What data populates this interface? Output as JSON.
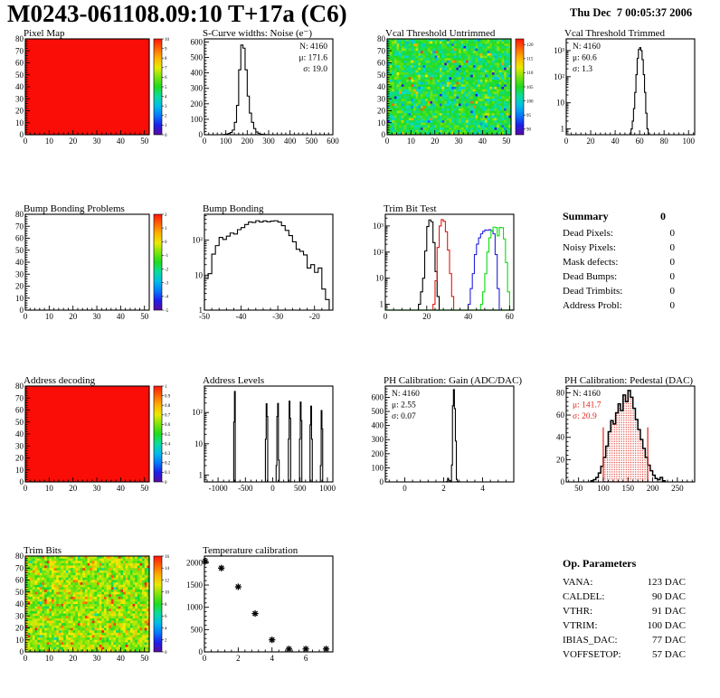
{
  "header": {
    "title": "M0243-061108.09:10 T+17a (C6)",
    "date": "Thu Dec  7 00:05:37 2006"
  },
  "summary": {
    "heading": "Summary",
    "value": "0",
    "rows": [
      {
        "label": "Dead Pixels:",
        "value": "0"
      },
      {
        "label": "Noisy Pixels:",
        "value": "0"
      },
      {
        "label": "Mask defects:",
        "value": "0"
      },
      {
        "label": "Dead Bumps:",
        "value": "0"
      },
      {
        "label": "Dead Trimbits:",
        "value": "0"
      },
      {
        "label": "Address Probl:",
        "value": "0"
      }
    ]
  },
  "op_parameters": {
    "heading": "Op. Parameters",
    "rows": [
      {
        "label": "VANA:",
        "value": "123 DAC"
      },
      {
        "label": "CALDEL:",
        "value": "90 DAC"
      },
      {
        "label": "VTHR:",
        "value": "91 DAC"
      },
      {
        "label": "VTRIM:",
        "value": "100 DAC"
      },
      {
        "label": "IBIAS_DAC:",
        "value": "77 DAC"
      },
      {
        "label": "VOFFSETOP:",
        "value": "57 DAC"
      }
    ]
  },
  "chart_data": [
    {
      "name": "pixel-map",
      "title": "Pixel Map",
      "type": "heatmap",
      "grid": {
        "row": 0,
        "col": 0
      },
      "xlim": [
        0,
        52
      ],
      "ylim": [
        0,
        80
      ],
      "xticks": [
        0,
        10,
        20,
        30,
        40,
        50
      ],
      "yticks": [
        0,
        10,
        20,
        30,
        40,
        50,
        60,
        70,
        80
      ],
      "heat": {
        "mode": "solid",
        "color": "#fa0d06"
      },
      "colorbar": {
        "zmin": 0,
        "zmax": 10,
        "labels": [
          {
            "v": 10,
            "t": "10"
          },
          {
            "v": 9,
            "t": "9"
          },
          {
            "v": 8,
            "t": "8"
          },
          {
            "v": 7,
            "t": "7"
          },
          {
            "v": 6,
            "t": "6"
          },
          {
            "v": 5,
            "t": "5"
          },
          {
            "v": 4,
            "t": "4"
          },
          {
            "v": 3,
            "t": "3"
          },
          {
            "v": 2,
            "t": "2"
          },
          {
            "v": 1,
            "t": "1"
          },
          {
            "v": 0,
            "t": "0"
          }
        ]
      }
    },
    {
      "name": "scurve-noise",
      "title": "S-Curve widths: Noise (e⁻)",
      "type": "hist",
      "scale": "linear",
      "grid": {
        "row": 0,
        "col": 1
      },
      "xlim": [
        0,
        600
      ],
      "ylim": [
        0,
        620
      ],
      "xticks": [
        0,
        100,
        200,
        300,
        400,
        500,
        600
      ],
      "yticks": [
        0,
        100,
        200,
        300,
        400,
        500,
        600
      ],
      "series": [
        {
          "color": "#000000",
          "x0": 90,
          "bw": 10,
          "values": [
            2,
            4,
            8,
            14,
            30,
            80,
            190,
            420,
            580,
            560,
            420,
            250,
            140,
            80,
            40,
            18,
            8,
            3,
            2,
            1
          ]
        }
      ],
      "stats": {
        "pos": "tr",
        "lines": [
          {
            "text": "N: 4160",
            "color": "#000000"
          },
          {
            "text": "μ: 171.6",
            "color": "#000000"
          },
          {
            "text": "σ: 19.0",
            "color": "#000000"
          }
        ]
      }
    },
    {
      "name": "vcal-threshold-untrimmed",
      "title": "Vcal Threshold Untrimmed",
      "type": "heatmap",
      "grid": {
        "row": 0,
        "col": 2
      },
      "xlim": [
        0,
        52
      ],
      "ylim": [
        0,
        80
      ],
      "xticks": [
        0,
        10,
        20,
        30,
        40,
        50
      ],
      "yticks": [
        0,
        10,
        20,
        30,
        40,
        50,
        60,
        70,
        80
      ],
      "heat": {
        "mode": "noise",
        "mean": 104.5,
        "sd": 3.2,
        "seed": 7,
        "low_p": 0.028,
        "low": [
          90,
          97
        ],
        "high_p": 0.014,
        "high": [
          112,
          121
        ]
      },
      "colorbar": {
        "zmin": 88,
        "zmax": 122,
        "labels": [
          {
            "v": 120,
            "t": "120"
          },
          {
            "v": 115,
            "t": "115"
          },
          {
            "v": 110,
            "t": "110"
          },
          {
            "v": 105,
            "t": "105"
          },
          {
            "v": 100,
            "t": "100"
          },
          {
            "v": 95,
            "t": "95"
          },
          {
            "v": 90,
            "t": "90"
          }
        ]
      }
    },
    {
      "name": "vcal-threshold-trimmed",
      "title": "Vcal Threshold Trimmed",
      "type": "hist",
      "scale": "log",
      "grid": {
        "row": 0,
        "col": 3
      },
      "xlim": [
        0,
        105
      ],
      "ylim": [
        0.6,
        2800
      ],
      "xticks": [
        0,
        20,
        40,
        60,
        80,
        100
      ],
      "yticks_log": [
        {
          "v": 1,
          "t": "1"
        },
        {
          "v": 10,
          "t": "10"
        },
        {
          "v": 100,
          "t": "10²"
        },
        {
          "v": 1000,
          "t": "10³"
        }
      ],
      "series": [
        {
          "color": "#000000",
          "x0": 53,
          "bw": 1,
          "values": [
            1,
            2,
            6,
            25,
            120,
            500,
            1100,
            1300,
            1000,
            450,
            120,
            25,
            4,
            1
          ]
        }
      ],
      "stats": {
        "pos": "tl",
        "lines": [
          {
            "text": "N: 4160",
            "color": "#000000"
          },
          {
            "text": "μ: 60.6",
            "color": "#000000"
          },
          {
            "text": "σ: 1.3",
            "color": "#000000"
          }
        ]
      }
    },
    {
      "name": "bump-bonding-problems",
      "title": "Bump Bonding Problems",
      "type": "heatmap",
      "grid": {
        "row": 1,
        "col": 0
      },
      "xlim": [
        0,
        52
      ],
      "ylim": [
        0,
        80
      ],
      "xticks": [
        0,
        10,
        20,
        30,
        40,
        50
      ],
      "yticks": [
        0,
        10,
        20,
        30,
        40,
        50,
        60,
        70,
        80
      ],
      "heat": {
        "mode": "empty"
      },
      "colorbar": {
        "zmin": -5,
        "zmax": 2,
        "labels": [
          {
            "v": 2,
            "t": "2"
          },
          {
            "v": 1,
            "t": "1"
          },
          {
            "v": 0,
            "t": "0"
          },
          {
            "v": -1,
            "t": "-1"
          },
          {
            "v": -2,
            "t": "-2"
          },
          {
            "v": -3,
            "t": "-3"
          },
          {
            "v": -4,
            "t": "-4"
          },
          {
            "v": -5,
            "t": "-5"
          }
        ]
      }
    },
    {
      "name": "bump-bonding",
      "title": "Bump Bonding",
      "type": "hist",
      "scale": "log",
      "grid": {
        "row": 1,
        "col": 1
      },
      "xlim": [
        -50,
        -15
      ],
      "ylim": [
        1,
        550
      ],
      "xticks": [
        -50,
        -40,
        -30,
        -20
      ],
      "yticks_log": [
        {
          "v": 1,
          "t": "1"
        },
        {
          "v": 10,
          "t": "10"
        },
        {
          "v": 100,
          "t": "10²"
        }
      ],
      "series": [
        {
          "color": "#000000",
          "x0": -50,
          "bw": 1,
          "values": [
            8,
            11,
            40,
            70,
            120,
            105,
            130,
            160,
            150,
            200,
            230,
            280,
            330,
            320,
            360,
            330,
            355,
            335,
            350,
            360,
            330,
            260,
            190,
            135,
            90,
            55,
            48,
            38,
            16,
            20,
            12,
            16,
            4,
            2
          ]
        }
      ]
    },
    {
      "name": "trim-bit-test",
      "title": "Trim Bit Test",
      "type": "hist",
      "scale": "log",
      "grid": {
        "row": 1,
        "col": 2
      },
      "xlim": [
        0,
        62
      ],
      "ylim": [
        0.6,
        2800
      ],
      "xticks": [
        0,
        20,
        40,
        60
      ],
      "yticks_log": [
        {
          "v": 1,
          "t": "1"
        },
        {
          "v": 10,
          "t": "10"
        },
        {
          "v": 100,
          "t": "10²"
        },
        {
          "v": 1000,
          "t": "10³"
        }
      ],
      "series": [
        {
          "color": "#000000",
          "x0": 16,
          "bw": 1,
          "values": [
            1,
            3,
            10,
            110,
            950,
            1700,
            1450,
            230,
            18,
            2
          ]
        },
        {
          "color": "#e0190f",
          "x0": 23,
          "bw": 1,
          "values": [
            1,
            8,
            150,
            1000,
            1750,
            1500,
            600,
            120,
            15,
            2
          ]
        },
        {
          "color": "#2222dd",
          "x0": 40,
          "bw": 1,
          "values": [
            1,
            4,
            15,
            80,
            200,
            350,
            500,
            620,
            700,
            680,
            720,
            650,
            500,
            80,
            4
          ]
        },
        {
          "color": "#0ddd0d",
          "x0": 46,
          "bw": 1,
          "values": [
            1,
            3,
            15,
            100,
            350,
            650,
            900,
            870,
            420,
            880,
            860,
            320,
            40,
            3
          ],
          "baseline_span": [
            0,
            62
          ]
        }
      ]
    },
    {
      "name": "address-decoding",
      "title": "Address decoding",
      "type": "heatmap",
      "grid": {
        "row": 2,
        "col": 0
      },
      "xlim": [
        0,
        52
      ],
      "ylim": [
        0,
        80
      ],
      "xticks": [
        0,
        10,
        20,
        30,
        40,
        50
      ],
      "yticks": [
        0,
        10,
        20,
        30,
        40,
        50,
        60,
        70,
        80
      ],
      "heat": {
        "mode": "solid",
        "color": "#fa0d06"
      },
      "colorbar": {
        "zmin": 0,
        "zmax": 1,
        "labels": [
          {
            "v": 1,
            "t": "1"
          },
          {
            "v": 0.9,
            "t": "0.9"
          },
          {
            "v": 0.8,
            "t": "0.8"
          },
          {
            "v": 0.7,
            "t": "0.7"
          },
          {
            "v": 0.6,
            "t": "0.6"
          },
          {
            "v": 0.5,
            "t": "0.5"
          },
          {
            "v": 0.4,
            "t": "0.4"
          },
          {
            "v": 0.3,
            "t": "0.3"
          },
          {
            "v": 0.2,
            "t": "0.2"
          },
          {
            "v": 0.1,
            "t": "0.1"
          },
          {
            "v": 0,
            "t": "0"
          }
        ]
      }
    },
    {
      "name": "address-levels",
      "title": "Address Levels",
      "type": "hist",
      "scale": "log",
      "grid": {
        "row": 2,
        "col": 1
      },
      "xlim": [
        -1250,
        1100
      ],
      "ylim": [
        0.6,
        700
      ],
      "xticks": [
        -1000,
        -500,
        0,
        500,
        1000
      ],
      "yticks_log": [
        {
          "v": 1,
          "t": "1"
        },
        {
          "v": 10,
          "t": "10"
        },
        {
          "v": 100,
          "t": "10²"
        }
      ],
      "series": [
        {
          "color": "#000000",
          "x0": -714,
          "bw": 14,
          "values": [
            50,
            470
          ]
        },
        {
          "color": "#000000",
          "x0": -134,
          "bw": 14,
          "values": [
            14,
            190,
            75
          ]
        },
        {
          "color": "#000000",
          "x0": 62,
          "bw": 14,
          "values": [
            2,
            75,
            195,
            3
          ]
        },
        {
          "color": "#000000",
          "x0": 286,
          "bw": 14,
          "values": [
            14,
            230,
            65
          ]
        },
        {
          "color": "#000000",
          "x0": 490,
          "bw": 14,
          "values": [
            14,
            215,
            55
          ]
        },
        {
          "color": "#000000",
          "x0": 682,
          "bw": 14,
          "values": [
            40,
            160,
            14
          ]
        },
        {
          "color": "#000000",
          "x0": 872,
          "bw": 14,
          "values": [
            2,
            115,
            30
          ]
        }
      ]
    },
    {
      "name": "ph-calibration-gain",
      "title": "PH Calibration: Gain (ADC/DAC)",
      "type": "hist",
      "scale": "linear",
      "grid": {
        "row": 2,
        "col": 2
      },
      "xlim": [
        -1,
        5.6
      ],
      "ylim": [
        0,
        680
      ],
      "xticks": [
        0,
        2,
        4
      ],
      "yticks": [
        0,
        100,
        200,
        300,
        400,
        500,
        600
      ],
      "series": [
        {
          "color": "#000000",
          "x0": 2.15,
          "bw": 0.05,
          "values": [
            3,
            25,
            12,
            4,
            8,
            120,
            540,
            655,
            520,
            290,
            18,
            4
          ]
        }
      ],
      "stats": {
        "pos": "tl",
        "lines": [
          {
            "text": "N: 4160",
            "color": "#000000"
          },
          {
            "text": "μ: 2.55",
            "color": "#000000"
          },
          {
            "text": "σ: 0.07",
            "color": "#000000"
          }
        ]
      }
    },
    {
      "name": "ph-calibration-pedestal",
      "title": "PH Calibration: Pedestal (DAC)",
      "type": "hist",
      "scale": "linear",
      "grid": {
        "row": 2,
        "col": 3
      },
      "xlim": [
        25,
        285
      ],
      "ylim": [
        0,
        86
      ],
      "xticks": [
        50,
        100,
        150,
        200,
        250
      ],
      "yticks": [
        0,
        20,
        40,
        60,
        80
      ],
      "series": [
        {
          "color": "#000000",
          "x0": 75,
          "bw": 5,
          "lw": 1.5,
          "values": [
            1,
            2,
            4,
            8,
            14,
            22,
            32,
            45,
            55,
            52,
            62,
            70,
            64,
            78,
            72,
            82,
            76,
            66,
            56,
            47,
            38,
            30,
            22,
            15,
            10,
            6,
            3,
            2,
            4,
            1
          ]
        }
      ],
      "fill_region": {
        "from": 100,
        "to": 190
      },
      "vlines": [
        {
          "x": 100,
          "h": 49
        },
        {
          "x": 190,
          "h": 49
        }
      ],
      "accent": "#e02519",
      "stats": {
        "pos": "tl",
        "lines": [
          {
            "text": "N: 4160",
            "color": "#000000"
          },
          {
            "text": "μ: 141.7",
            "color": "#e02519"
          },
          {
            "text": "σ: 20.9",
            "color": "#e02519"
          }
        ]
      }
    },
    {
      "name": "trim-bits",
      "title": "Trim Bits",
      "type": "heatmap",
      "grid": {
        "row": 3,
        "col": 0
      },
      "xlim": [
        0,
        52
      ],
      "ylim": [
        0,
        80
      ],
      "xticks": [
        0,
        10,
        20,
        30,
        40,
        50
      ],
      "yticks": [
        0,
        10,
        20,
        30,
        40,
        50,
        60,
        70,
        80
      ],
      "heat": {
        "mode": "noise",
        "mean": 10,
        "sd": 1.4,
        "seed": 13,
        "low_p": 0.01,
        "low": [
          5,
          8
        ],
        "high_p": 0.06,
        "high": [
          12.5,
          16
        ]
      },
      "colorbar": {
        "zmin": 0,
        "zmax": 16,
        "labels": [
          {
            "v": 16,
            "t": "16"
          },
          {
            "v": 14,
            "t": "14"
          },
          {
            "v": 12,
            "t": "12"
          },
          {
            "v": 10,
            "t": "10"
          },
          {
            "v": 8,
            "t": "8"
          },
          {
            "v": 6,
            "t": "6"
          },
          {
            "v": 4,
            "t": "4"
          },
          {
            "v": 2,
            "t": "2"
          },
          {
            "v": 0,
            "t": "0"
          }
        ]
      }
    },
    {
      "name": "temperature-calibration",
      "title": "Temperature calibration",
      "type": "scatter",
      "grid": {
        "row": 3,
        "col": 1
      },
      "xlim": [
        0,
        7.6
      ],
      "ylim": [
        0,
        2150
      ],
      "xticks": [
        0,
        2,
        4,
        6
      ],
      "yticks": [
        0,
        500,
        1000,
        1500,
        2000
      ],
      "marker": "asterisk",
      "points": [
        [
          0.05,
          2030
        ],
        [
          1,
          1880
        ],
        [
          2,
          1460
        ],
        [
          3,
          860
        ],
        [
          4,
          270
        ],
        [
          5,
          65
        ],
        [
          6,
          65
        ],
        [
          7.2,
          65
        ]
      ]
    }
  ]
}
